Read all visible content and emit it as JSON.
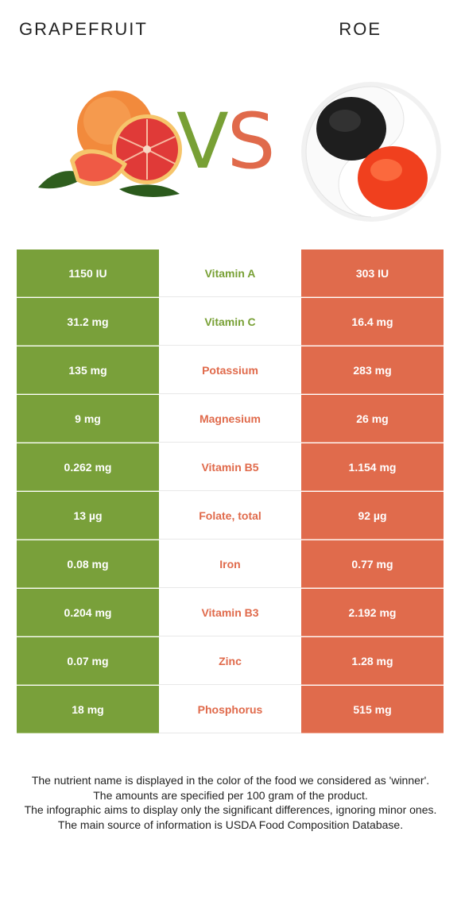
{
  "header": {
    "left_title": "GRAPEFRUIT",
    "right_title": "ROE"
  },
  "vs": {
    "v": "V",
    "s": "S"
  },
  "colors": {
    "grapefruit": "#79a03a",
    "roe": "#e06b4c"
  },
  "rows": [
    {
      "left": "1150 IU",
      "nutrient": "Vitamin A",
      "right": "303 IU",
      "winner": "grapefruit"
    },
    {
      "left": "31.2 mg",
      "nutrient": "Vitamin C",
      "right": "16.4 mg",
      "winner": "grapefruit"
    },
    {
      "left": "135 mg",
      "nutrient": "Potassium",
      "right": "283 mg",
      "winner": "roe"
    },
    {
      "left": "9 mg",
      "nutrient": "Magnesium",
      "right": "26 mg",
      "winner": "roe"
    },
    {
      "left": "0.262 mg",
      "nutrient": "Vitamin B5",
      "right": "1.154 mg",
      "winner": "roe"
    },
    {
      "left": "13 µg",
      "nutrient": "Folate, total",
      "right": "92 µg",
      "winner": "roe"
    },
    {
      "left": "0.08 mg",
      "nutrient": "Iron",
      "right": "0.77 mg",
      "winner": "roe"
    },
    {
      "left": "0.204 mg",
      "nutrient": "Vitamin B3",
      "right": "2.192 mg",
      "winner": "roe"
    },
    {
      "left": "0.07 mg",
      "nutrient": "Zinc",
      "right": "1.28 mg",
      "winner": "roe"
    },
    {
      "left": "18 mg",
      "nutrient": "Phosphorus",
      "right": "515 mg",
      "winner": "roe"
    }
  ],
  "footer": {
    "line1": "The nutrient name is displayed in the color of the food we considered as 'winner'.",
    "line2": "The amounts are specified per 100 gram of the product.",
    "line3": "The infographic aims to display only the significant differences, ignoring minor ones.",
    "line4": "The main source of information is USDA Food Composition Database."
  }
}
